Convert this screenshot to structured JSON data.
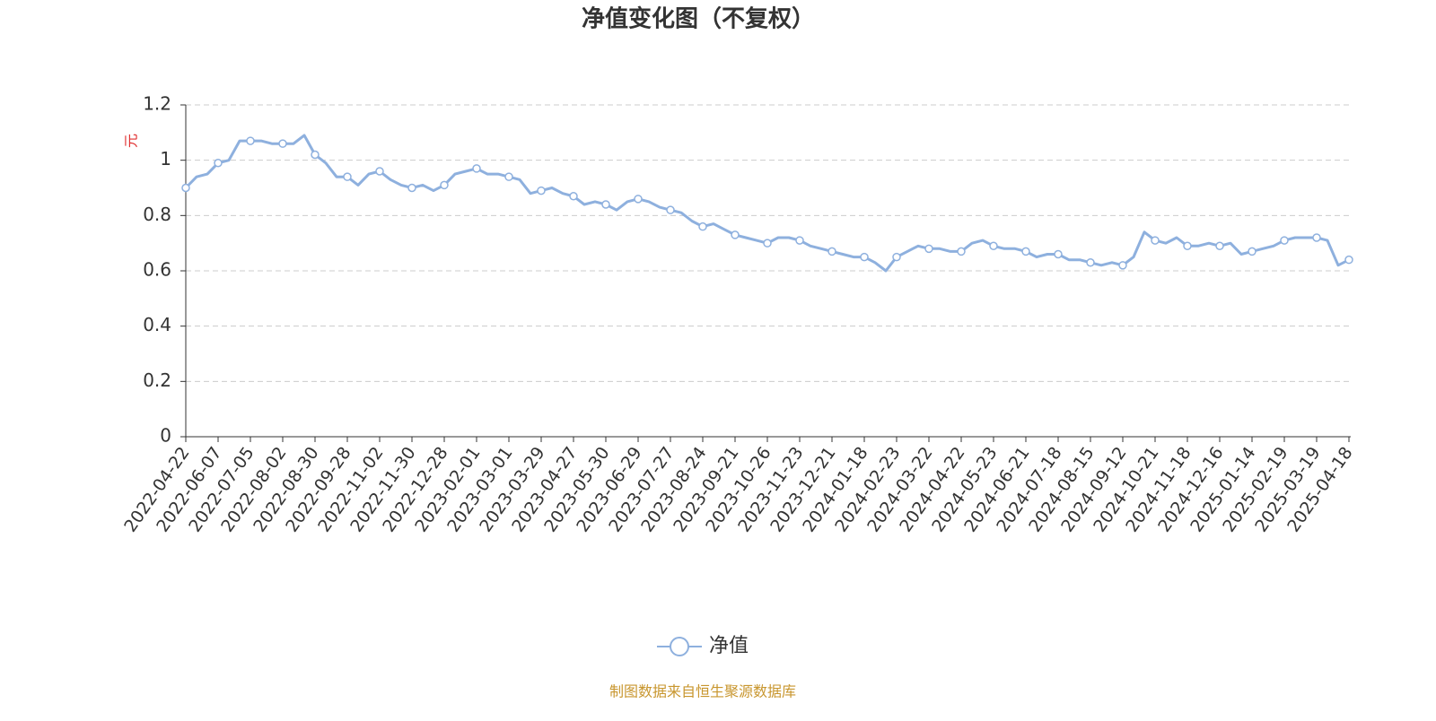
{
  "chart_data": {
    "type": "line",
    "title": "净值变化图（不复权）",
    "ylabel": "元",
    "source": "制图数据来自恒生聚源数据库",
    "categories": [
      "2022-04-22",
      null,
      null,
      "2022-06-07",
      null,
      null,
      "2022-07-05",
      null,
      null,
      "2022-08-02",
      null,
      null,
      "2022-08-30",
      null,
      null,
      "2022-09-28",
      null,
      null,
      "2022-11-02",
      null,
      null,
      "2022-11-30",
      null,
      null,
      "2022-12-28",
      null,
      null,
      "2023-02-01",
      null,
      null,
      "2023-03-01",
      null,
      null,
      "2023-03-29",
      null,
      null,
      "2023-04-27",
      null,
      null,
      "2023-05-30",
      null,
      null,
      "2023-06-29",
      null,
      null,
      "2023-07-27",
      null,
      null,
      "2023-08-24",
      null,
      null,
      "2023-09-21",
      null,
      null,
      "2023-10-26",
      null,
      null,
      "2023-11-23",
      null,
      null,
      "2023-12-21",
      null,
      null,
      "2024-01-18",
      null,
      null,
      "2024-02-23",
      null,
      null,
      "2024-03-22",
      null,
      null,
      "2024-04-22",
      null,
      null,
      "2024-05-23",
      null,
      null,
      "2024-06-21",
      null,
      null,
      "2024-07-18",
      null,
      null,
      "2024-08-15",
      null,
      null,
      "2024-09-12",
      null,
      null,
      "2024-10-21",
      null,
      null,
      "2024-11-18",
      null,
      null,
      "2024-12-16",
      null,
      null,
      "2025-01-14",
      null,
      null,
      "2025-02-19",
      null,
      null,
      "2025-03-19",
      null,
      null,
      "2025-04-18"
    ],
    "series": [
      {
        "name": "净值",
        "color": "#8eb0de",
        "values": [
          0.9,
          0.94,
          0.95,
          0.99,
          1.0,
          1.07,
          1.07,
          1.07,
          1.06,
          1.06,
          1.06,
          1.09,
          1.02,
          0.99,
          0.94,
          0.94,
          0.91,
          0.95,
          0.96,
          0.93,
          0.91,
          0.9,
          0.91,
          0.89,
          0.91,
          0.95,
          0.96,
          0.97,
          0.95,
          0.95,
          0.94,
          0.93,
          0.88,
          0.89,
          0.9,
          0.88,
          0.87,
          0.84,
          0.85,
          0.84,
          0.82,
          0.85,
          0.86,
          0.85,
          0.83,
          0.82,
          0.81,
          0.78,
          0.76,
          0.77,
          0.75,
          0.73,
          0.72,
          0.71,
          0.7,
          0.72,
          0.72,
          0.71,
          0.69,
          0.68,
          0.67,
          0.66,
          0.65,
          0.65,
          0.63,
          0.6,
          0.65,
          0.67,
          0.69,
          0.68,
          0.68,
          0.67,
          0.67,
          0.7,
          0.71,
          0.69,
          0.68,
          0.68,
          0.67,
          0.65,
          0.66,
          0.66,
          0.64,
          0.64,
          0.63,
          0.62,
          0.63,
          0.62,
          0.65,
          0.74,
          0.71,
          0.7,
          0.72,
          0.69,
          0.69,
          0.7,
          0.69,
          0.7,
          0.66,
          0.67,
          0.68,
          0.69,
          0.71,
          0.72,
          0.72,
          0.72,
          0.71,
          0.62,
          0.64
        ]
      }
    ],
    "ylim": [
      0,
      1.2
    ],
    "yticks": [
      0,
      0.2,
      0.4,
      0.6,
      0.8,
      1,
      1.2
    ],
    "grid": true
  }
}
